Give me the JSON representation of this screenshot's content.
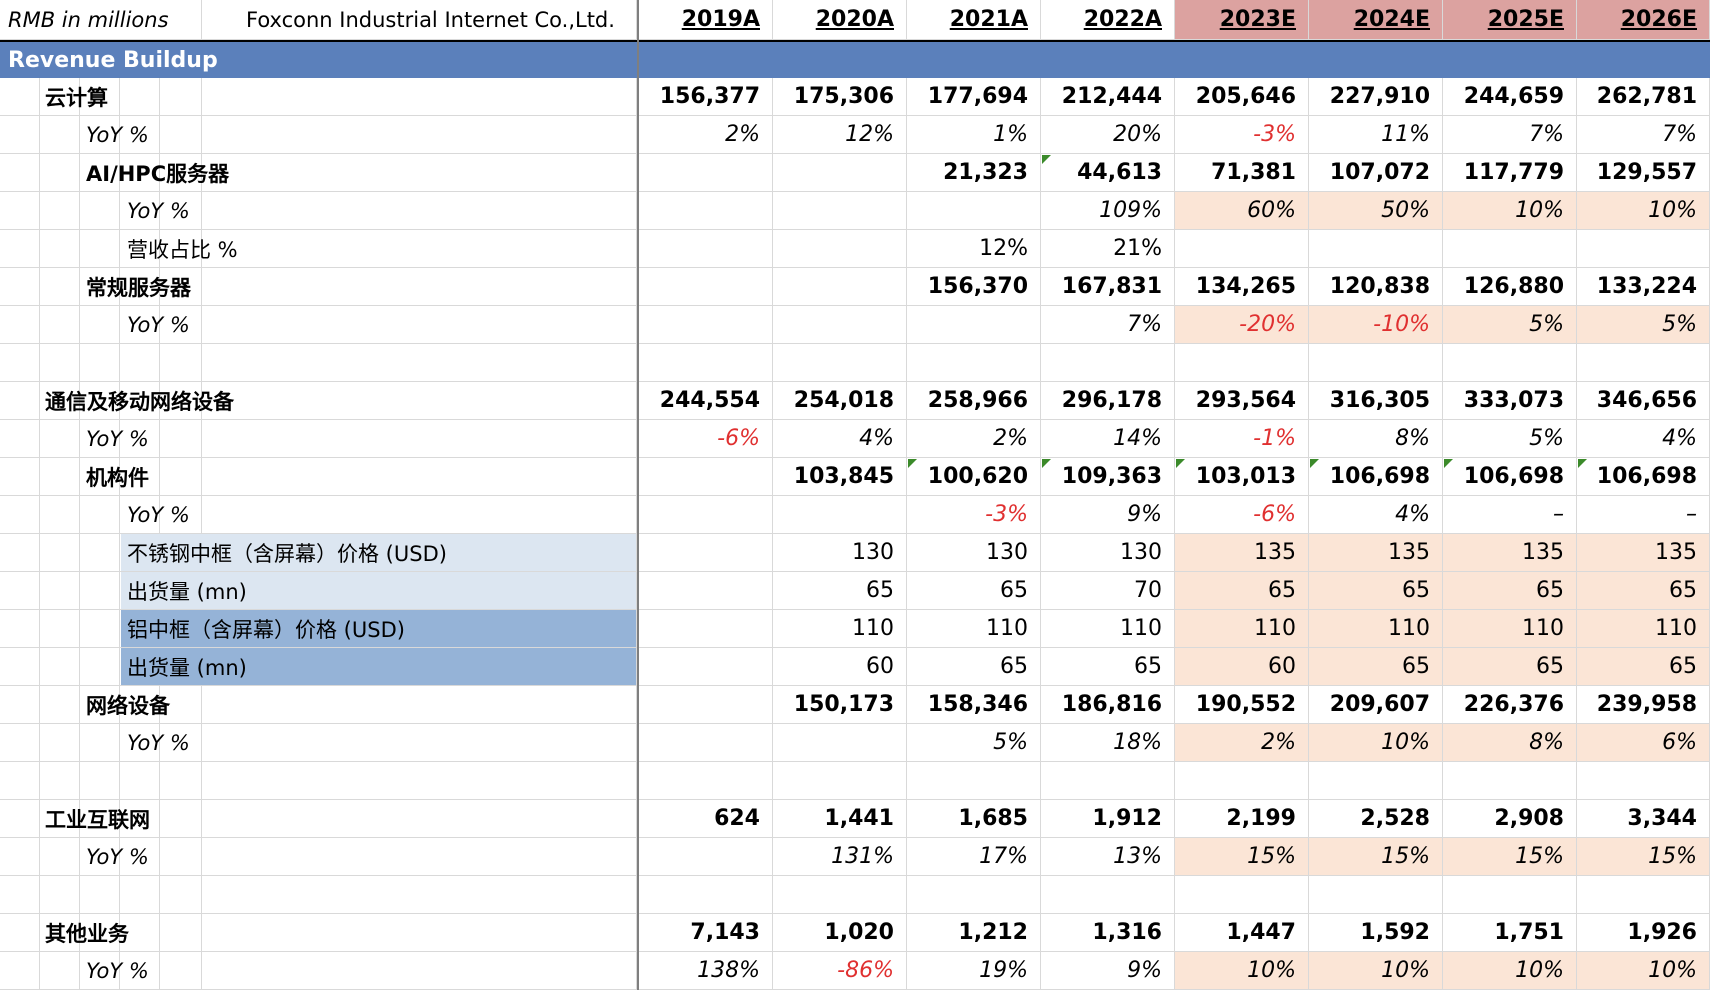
{
  "header": {
    "units": "RMB in millions",
    "company": "Foxconn Industrial Internet Co.,Ltd.",
    "years": [
      "2019A",
      "2020A",
      "2021A",
      "2022A",
      "2023E",
      "2024E",
      "2025E",
      "2026E"
    ]
  },
  "section_title": "Revenue Buildup",
  "colors": {
    "banner": "#5b80bb",
    "estimate_header": "#dca2a0",
    "estimate_fill": "#fbe5d6",
    "light_blue": "#dce6f1",
    "mid_blue": "#95b3d7",
    "negative": "#e03030"
  },
  "rows": [
    {
      "label": "云计算",
      "indent": 1,
      "style": "bold",
      "values": [
        "156,377",
        "175,306",
        "177,694",
        "212,444",
        "205,646",
        "227,910",
        "244,659",
        "262,781"
      ]
    },
    {
      "label": "YoY %",
      "indent": 2,
      "style": "italic",
      "values": [
        "2%",
        "12%",
        "1%",
        "20%",
        "-3%",
        "11%",
        "7%",
        "7%"
      ],
      "red": [
        4
      ]
    },
    {
      "label": "AI/HPC服务器",
      "indent": 2,
      "style": "bold",
      "values": [
        "",
        "",
        "21,323",
        "44,613",
        "71,381",
        "107,072",
        "117,779",
        "129,557"
      ],
      "marks": [
        3
      ]
    },
    {
      "label": "YoY %",
      "indent": 3,
      "style": "italic",
      "values": [
        "",
        "",
        "",
        "109%",
        "60%",
        "50%",
        "10%",
        "10%"
      ],
      "fill": true
    },
    {
      "label": "营收占比 %",
      "indent": 3,
      "style": "normal",
      "values": [
        "",
        "",
        "12%",
        "21%",
        "",
        "",
        "",
        ""
      ]
    },
    {
      "label": "常规服务器",
      "indent": 2,
      "style": "bold",
      "values": [
        "",
        "",
        "156,370",
        "167,831",
        "134,265",
        "120,838",
        "126,880",
        "133,224"
      ]
    },
    {
      "label": "YoY %",
      "indent": 3,
      "style": "italic",
      "values": [
        "",
        "",
        "",
        "7%",
        "-20%",
        "-10%",
        "5%",
        "5%"
      ],
      "red": [
        4,
        5
      ],
      "fill": true
    },
    {
      "label": "",
      "indent": 1,
      "style": "normal",
      "values": [
        "",
        "",
        "",
        "",
        "",
        "",
        "",
        ""
      ]
    },
    {
      "label": "通信及移动网络设备",
      "indent": 1,
      "style": "bold",
      "values": [
        "244,554",
        "254,018",
        "258,966",
        "296,178",
        "293,564",
        "316,305",
        "333,073",
        "346,656"
      ]
    },
    {
      "label": "YoY %",
      "indent": 2,
      "style": "italic",
      "values": [
        "-6%",
        "4%",
        "2%",
        "14%",
        "-1%",
        "8%",
        "5%",
        "4%"
      ],
      "red": [
        0,
        4
      ]
    },
    {
      "label": "机构件",
      "indent": 2,
      "style": "bold",
      "values": [
        "",
        "103,845",
        "100,620",
        "109,363",
        "103,013",
        "106,698",
        "106,698",
        "106,698"
      ],
      "marks": [
        2,
        3,
        4,
        5,
        6,
        7
      ]
    },
    {
      "label": "YoY %",
      "indent": 3,
      "style": "italic",
      "values": [
        "",
        "",
        "-3%",
        "9%",
        "-6%",
        "4%",
        "–",
        "–"
      ],
      "red": [
        2,
        4
      ]
    },
    {
      "label": "不锈钢中框（含屏幕）价格 (USD)",
      "indent": 3,
      "style": "normal",
      "values": [
        "",
        "130",
        "130",
        "130",
        "135",
        "135",
        "135",
        "135"
      ],
      "fill": true,
      "labelfill": "light"
    },
    {
      "label": "出货量 (mn)",
      "indent": 3,
      "style": "normal",
      "values": [
        "",
        "65",
        "65",
        "70",
        "65",
        "65",
        "65",
        "65"
      ],
      "fill": true,
      "labelfill": "light"
    },
    {
      "label": "铝中框（含屏幕）价格 (USD)",
      "indent": 3,
      "style": "normal",
      "values": [
        "",
        "110",
        "110",
        "110",
        "110",
        "110",
        "110",
        "110"
      ],
      "fill": true,
      "labelfill": "mid"
    },
    {
      "label": "出货量 (mn)",
      "indent": 3,
      "style": "normal",
      "values": [
        "",
        "60",
        "65",
        "65",
        "60",
        "65",
        "65",
        "65"
      ],
      "fill": true,
      "labelfill": "mid"
    },
    {
      "label": "网络设备",
      "indent": 2,
      "style": "bold",
      "values": [
        "",
        "150,173",
        "158,346",
        "186,816",
        "190,552",
        "209,607",
        "226,376",
        "239,958"
      ]
    },
    {
      "label": "YoY %",
      "indent": 3,
      "style": "italic",
      "values": [
        "",
        "",
        "5%",
        "18%",
        "2%",
        "10%",
        "8%",
        "6%"
      ],
      "fill": true
    },
    {
      "label": "",
      "indent": 1,
      "style": "normal",
      "values": [
        "",
        "",
        "",
        "",
        "",
        "",
        "",
        ""
      ]
    },
    {
      "label": "工业互联网",
      "indent": 1,
      "style": "bold",
      "values": [
        "624",
        "1,441",
        "1,685",
        "1,912",
        "2,199",
        "2,528",
        "2,908",
        "3,344"
      ]
    },
    {
      "label": "YoY %",
      "indent": 2,
      "style": "italic",
      "values": [
        "",
        "131%",
        "17%",
        "13%",
        "15%",
        "15%",
        "15%",
        "15%"
      ],
      "fill": true
    },
    {
      "label": "",
      "indent": 1,
      "style": "normal",
      "values": [
        "",
        "",
        "",
        "",
        "",
        "",
        "",
        ""
      ]
    },
    {
      "label": "其他业务",
      "indent": 1,
      "style": "bold",
      "values": [
        "7,143",
        "1,020",
        "1,212",
        "1,316",
        "1,447",
        "1,592",
        "1,751",
        "1,926"
      ]
    },
    {
      "label": "YoY %",
      "indent": 2,
      "style": "italic",
      "values": [
        "138%",
        "-86%",
        "19%",
        "9%",
        "10%",
        "10%",
        "10%",
        "10%"
      ],
      "red": [
        1
      ],
      "fill": true
    }
  ]
}
